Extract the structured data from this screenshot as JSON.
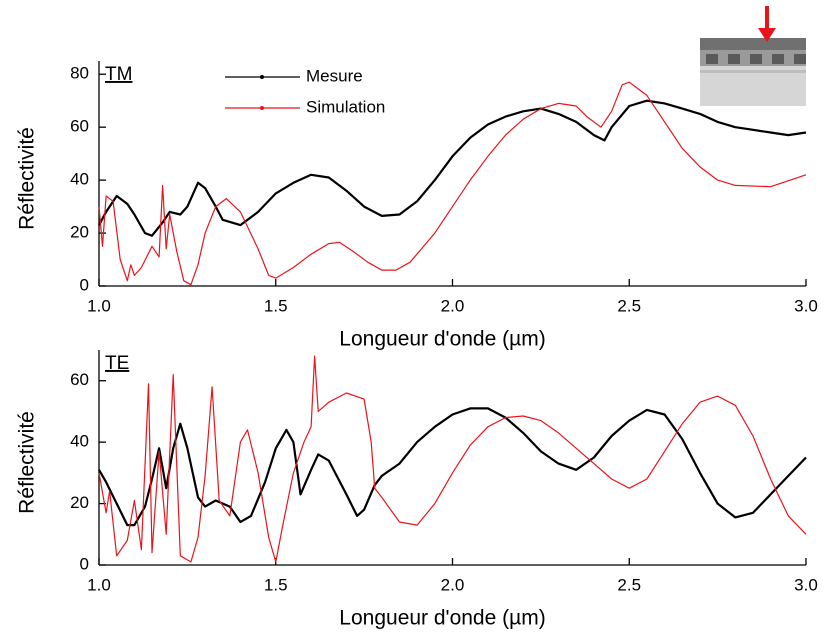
{
  "chart_data": [
    {
      "type": "line",
      "annotation": "TM",
      "xlabel": "Longueur d'onde (µm)",
      "ylabel": "Réflectivité",
      "xlim": [
        1.0,
        3.0
      ],
      "xticks": [
        {
          "value": 1.0,
          "label": "1.0"
        },
        {
          "value": 1.5,
          "label": "1.5"
        },
        {
          "value": 2.0,
          "label": "2.0"
        },
        {
          "value": 2.5,
          "label": "2.5"
        },
        {
          "value": 3.0,
          "label": "3.0"
        }
      ],
      "ylim": [
        0,
        85
      ],
      "yticks": [
        0,
        20,
        40,
        60,
        80
      ],
      "legend": "top",
      "series": [
        {
          "name": "Mesure",
          "color": "#000000",
          "x": [
            1.0,
            1.02,
            1.05,
            1.08,
            1.1,
            1.13,
            1.15,
            1.18,
            1.2,
            1.23,
            1.25,
            1.28,
            1.3,
            1.33,
            1.35,
            1.4,
            1.45,
            1.5,
            1.55,
            1.6,
            1.65,
            1.7,
            1.75,
            1.8,
            1.85,
            1.9,
            1.95,
            2.0,
            2.05,
            2.1,
            2.15,
            2.2,
            2.25,
            2.3,
            2.35,
            2.4,
            2.43,
            2.45,
            2.5,
            2.55,
            2.6,
            2.65,
            2.7,
            2.75,
            2.8,
            2.85,
            2.9,
            2.95,
            3.0
          ],
          "values": [
            23,
            28,
            34,
            31,
            27,
            20,
            19,
            24,
            28,
            27,
            30,
            39,
            37,
            30,
            25,
            23,
            28,
            35,
            39,
            42,
            41,
            36,
            30,
            26.5,
            27,
            32,
            40,
            49,
            56,
            61,
            64,
            66,
            67,
            65,
            62,
            57,
            55,
            60,
            68,
            70,
            69,
            67,
            65,
            62,
            60,
            59,
            58,
            57,
            58
          ]
        },
        {
          "name": "Simulation",
          "color": "#e8141c",
          "x": [
            1.0,
            1.01,
            1.02,
            1.04,
            1.06,
            1.08,
            1.09,
            1.1,
            1.12,
            1.15,
            1.17,
            1.18,
            1.19,
            1.2,
            1.22,
            1.24,
            1.26,
            1.28,
            1.3,
            1.33,
            1.36,
            1.4,
            1.45,
            1.48,
            1.5,
            1.55,
            1.6,
            1.65,
            1.68,
            1.72,
            1.76,
            1.8,
            1.84,
            1.88,
            1.95,
            2.0,
            2.05,
            2.1,
            2.15,
            2.2,
            2.25,
            2.3,
            2.35,
            2.38,
            2.42,
            2.45,
            2.48,
            2.5,
            2.55,
            2.6,
            2.65,
            2.7,
            2.75,
            2.8,
            2.9,
            3.0
          ],
          "values": [
            30,
            15,
            34,
            32,
            10,
            2,
            8,
            4,
            7,
            15,
            11,
            38,
            14,
            27,
            13,
            2,
            0.5,
            8,
            20,
            30,
            33,
            28,
            14,
            4,
            3,
            7,
            12,
            16,
            16.5,
            13,
            9,
            6,
            6,
            9,
            20,
            30,
            40,
            49,
            57,
            63,
            67,
            69,
            68,
            64,
            60,
            66,
            76,
            77,
            72,
            62,
            52,
            45,
            40,
            38,
            37.5,
            42
          ]
        }
      ]
    },
    {
      "type": "line",
      "annotation": "TE",
      "xlabel": "Longueur d'onde (µm)",
      "ylabel": "Réflectivité",
      "xlim": [
        1.0,
        3.0
      ],
      "xticks": [
        {
          "value": 1.0,
          "label": "1.0"
        },
        {
          "value": 1.5,
          "label": "1.5"
        },
        {
          "value": 2.0,
          "label": "2.0"
        },
        {
          "value": 2.5,
          "label": "2.5"
        },
        {
          "value": 3.0,
          "label": "3.0"
        }
      ],
      "ylim": [
        0,
        70
      ],
      "yticks": [
        0,
        20,
        40,
        60
      ],
      "series": [
        {
          "color": "#000000",
          "x": [
            1.0,
            1.02,
            1.05,
            1.08,
            1.1,
            1.13,
            1.15,
            1.17,
            1.19,
            1.21,
            1.23,
            1.25,
            1.28,
            1.3,
            1.33,
            1.37,
            1.4,
            1.43,
            1.47,
            1.5,
            1.53,
            1.55,
            1.57,
            1.6,
            1.62,
            1.65,
            1.7,
            1.73,
            1.75,
            1.78,
            1.8,
            1.85,
            1.9,
            1.95,
            2.0,
            2.05,
            2.1,
            2.15,
            2.2,
            2.25,
            2.3,
            2.35,
            2.4,
            2.45,
            2.5,
            2.55,
            2.6,
            2.65,
            2.7,
            2.75,
            2.8,
            2.85,
            2.9,
            2.95,
            3.0
          ],
          "values": [
            31,
            27,
            20,
            13,
            13,
            19,
            28,
            38,
            25,
            38,
            46,
            38,
            22,
            19,
            21,
            19,
            14,
            16,
            27,
            38,
            44,
            40,
            23,
            31,
            36,
            34,
            23,
            16,
            18,
            26,
            29,
            33,
            40,
            45,
            49,
            51,
            51,
            48,
            43,
            37,
            33,
            31,
            35,
            42,
            47,
            50.5,
            49,
            41,
            30,
            20,
            15.5,
            17,
            23,
            29,
            35
          ]
        },
        {
          "color": "#e8141c",
          "x": [
            1.0,
            1.02,
            1.03,
            1.05,
            1.08,
            1.1,
            1.12,
            1.14,
            1.15,
            1.17,
            1.19,
            1.21,
            1.23,
            1.26,
            1.28,
            1.3,
            1.32,
            1.34,
            1.37,
            1.4,
            1.42,
            1.45,
            1.48,
            1.5,
            1.52,
            1.55,
            1.58,
            1.6,
            1.61,
            1.62,
            1.65,
            1.7,
            1.75,
            1.77,
            1.78,
            1.8,
            1.85,
            1.9,
            1.95,
            2.0,
            2.05,
            2.1,
            2.15,
            2.2,
            2.25,
            2.3,
            2.35,
            2.4,
            2.45,
            2.5,
            2.55,
            2.6,
            2.65,
            2.7,
            2.75,
            2.8,
            2.85,
            2.9,
            2.95,
            3.0
          ],
          "values": [
            30,
            17,
            24,
            3,
            8,
            21,
            5,
            59,
            4,
            37,
            10,
            62,
            3,
            1,
            9,
            29,
            58,
            21,
            16,
            40,
            44,
            30,
            9,
            1,
            13,
            30,
            40,
            45,
            68,
            50,
            53,
            56,
            54,
            40,
            25,
            22,
            14,
            13,
            20,
            30,
            39,
            45,
            48,
            48.5,
            47,
            43,
            38,
            33,
            28,
            25,
            28,
            37,
            46,
            53,
            55,
            52,
            42,
            28,
            16,
            10
          ]
        }
      ]
    }
  ]
}
